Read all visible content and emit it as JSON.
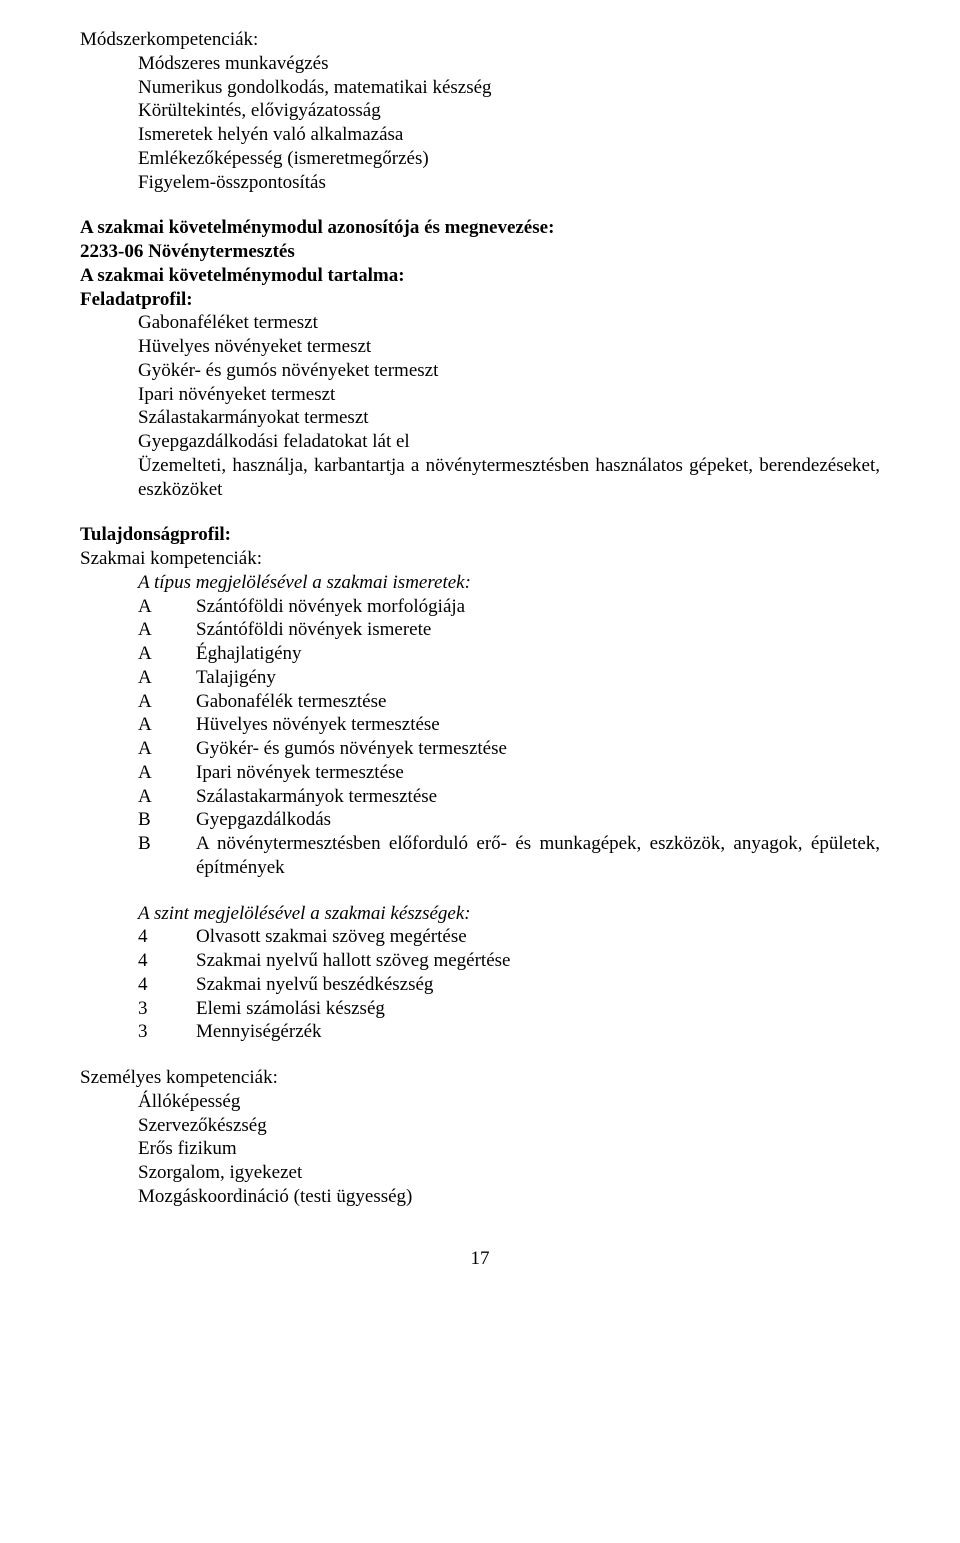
{
  "modszer": {
    "heading": "Módszerkompetenciák:",
    "items": [
      "Módszeres munkavégzés",
      "Numerikus gondolkodás, matematikai készség",
      "Körültekintés, elővigyázatosság",
      "Ismeretek helyén való alkalmazása",
      "Emlékezőképesség (ismeretmegőrzés)",
      "Figyelem-összpontosítás"
    ]
  },
  "szakmai_modul": {
    "line1": "A szakmai követelménymodul azonosítója és megnevezése:",
    "line2": "2233-06 Növénytermesztés",
    "line3": "A szakmai követelménymodul tartalma:",
    "line4": "Feladatprofil:"
  },
  "feladatprofil_items": [
    "Gabonaféléket termeszt",
    "Hüvelyes növényeket termeszt",
    "Gyökér- és gumós növényeket termeszt",
    "Ipari növényeket termeszt",
    "Szálastakarmányokat termeszt",
    "Gyepgazdálkodási feladatokat lát el",
    "Üzemelteti, használja, karbantartja a növénytermesztésben használatos gépeket, berendezéseket, eszközöket"
  ],
  "tulajdonsag": {
    "heading": "Tulajdonságprofil:",
    "sub1": "Szakmai kompetenciák:",
    "sub2_italic": "A típus megjelölésével a szakmai ismeretek:"
  },
  "ismeretek": [
    {
      "code": "A",
      "text": "Szántóföldi növények morfológiája"
    },
    {
      "code": "A",
      "text": "Szántóföldi növények ismerete"
    },
    {
      "code": "A",
      "text": "Éghajlatigény"
    },
    {
      "code": "A",
      "text": "Talajigény"
    },
    {
      "code": "A",
      "text": "Gabonafélék termesztése"
    },
    {
      "code": "A",
      "text": "Hüvelyes növények termesztése"
    },
    {
      "code": "A",
      "text": "Gyökér- és gumós növények termesztése"
    },
    {
      "code": "A",
      "text": "Ipari növények termesztése"
    },
    {
      "code": "A",
      "text": "Szálastakarmányok termesztése"
    },
    {
      "code": "B",
      "text": "Gyepgazdálkodás"
    },
    {
      "code": "B",
      "text": "A növénytermesztésben előforduló erő- és munkagépek, eszközök, anyagok, épületek, építmények"
    }
  ],
  "keszsegek_heading": "A szint megjelölésével a szakmai készségek:",
  "keszsegek": [
    {
      "code": "4",
      "text": "Olvasott szakmai szöveg megértése"
    },
    {
      "code": "4",
      "text": "Szakmai nyelvű hallott szöveg megértése"
    },
    {
      "code": "4",
      "text": "Szakmai nyelvű beszédkészség"
    },
    {
      "code": "3",
      "text": "Elemi számolási készség"
    },
    {
      "code": "3",
      "text": "Mennyiségérzék"
    }
  ],
  "szemelyes": {
    "heading": "Személyes kompetenciák:",
    "items": [
      "Állóképesség",
      "Szervezőkészség",
      "Erős fizikum",
      "Szorgalom, igyekezet",
      "Mozgáskoordináció (testi ügyesség)"
    ]
  },
  "page_number": "17"
}
